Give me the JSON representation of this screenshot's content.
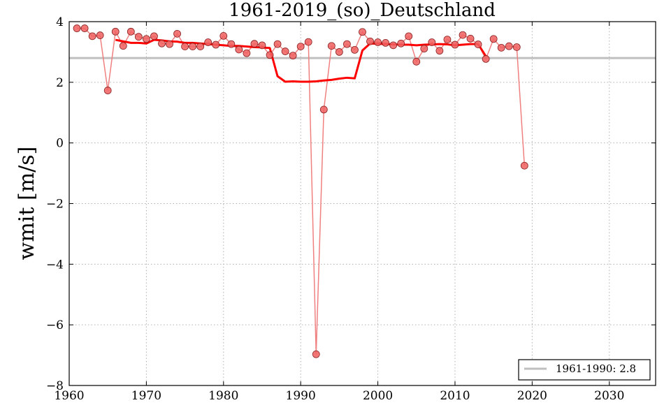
{
  "chart_data": {
    "type": "line",
    "title": "1961-2019_(so)_Deutschland",
    "xlabel": "",
    "ylabel": "wmit [m/s]",
    "xlim": [
      1960,
      2036
    ],
    "ylim": [
      -8,
      4
    ],
    "x_ticks": [
      1960,
      1970,
      1980,
      1990,
      2000,
      2010,
      2020,
      2030
    ],
    "y_ticks": [
      4,
      2,
      0,
      -2,
      -4,
      -6,
      -8
    ],
    "y_tick_labels": [
      "4",
      "2",
      "0",
      "−2",
      "−4",
      "−6",
      "−8"
    ],
    "grid": true,
    "legend_position": "bottom-right",
    "series": [
      {
        "style": "line-markers",
        "color": "#ff0000",
        "x": [
          1961,
          1962,
          1963,
          1964,
          1965,
          1966,
          1967,
          1968,
          1969,
          1970,
          1971,
          1972,
          1973,
          1974,
          1975,
          1976,
          1977,
          1978,
          1979,
          1980,
          1981,
          1982,
          1983,
          1984,
          1985,
          1986,
          1987,
          1988,
          1989,
          1990,
          1991,
          1992,
          1993,
          1994,
          1995,
          1996,
          1997,
          1998,
          1999,
          2000,
          2001,
          2002,
          2003,
          2004,
          2005,
          2006,
          2007,
          2008,
          2009,
          2010,
          2011,
          2012,
          2013,
          2014,
          2015,
          2016,
          2017,
          2018,
          2019
        ],
        "y": [
          3.78,
          3.78,
          3.52,
          3.55,
          1.73,
          3.67,
          3.2,
          3.67,
          3.5,
          3.43,
          3.52,
          3.28,
          3.26,
          3.6,
          3.18,
          3.18,
          3.18,
          3.32,
          3.24,
          3.53,
          3.26,
          3.08,
          2.96,
          3.27,
          3.22,
          2.9,
          3.26,
          3.02,
          2.88,
          3.18,
          3.33,
          -6.97,
          1.1,
          3.2,
          3.0,
          3.26,
          3.07,
          3.66,
          3.35,
          3.32,
          3.3,
          3.22,
          3.28,
          3.52,
          2.68,
          3.11,
          3.32,
          3.04,
          3.41,
          3.24,
          3.56,
          3.44,
          3.25,
          2.77,
          3.43,
          3.14,
          3.19,
          3.16,
          -0.75
        ]
      },
      {
        "style": "line",
        "color": "#ff0000",
        "x": [
          1966,
          1967,
          1968,
          1969,
          1970,
          1971,
          1972,
          1973,
          1974,
          1975,
          1976,
          1977,
          1978,
          1979,
          1980,
          1981,
          1982,
          1983,
          1984,
          1985,
          1986,
          1987,
          1988,
          1989,
          1990,
          1991,
          1992,
          1993,
          1994,
          1995,
          1996,
          1997,
          1998,
          1999,
          2000,
          2001,
          2002,
          2003,
          2004,
          2005,
          2006,
          2007,
          2008,
          2009,
          2010,
          2011,
          2012,
          2013,
          2014
        ],
        "y": [
          3.4,
          3.35,
          3.3,
          3.3,
          3.28,
          3.4,
          3.38,
          3.35,
          3.34,
          3.3,
          3.3,
          3.28,
          3.26,
          3.24,
          3.22,
          3.2,
          3.2,
          3.18,
          3.16,
          3.15,
          3.13,
          2.2,
          2.02,
          2.03,
          2.02,
          2.02,
          2.03,
          2.06,
          2.08,
          2.12,
          2.15,
          2.13,
          3.05,
          3.28,
          3.27,
          3.26,
          3.25,
          3.24,
          3.24,
          3.22,
          3.24,
          3.25,
          3.26,
          3.25,
          3.22,
          3.24,
          3.26,
          3.26,
          2.86
        ]
      }
    ],
    "reference_line": {
      "label": "1961-1990: 2.8",
      "value": 2.8,
      "color": "#bfbfbf"
    },
    "colors": {
      "marker_fill": "#f06060",
      "marker_edge": "#8a2020",
      "thin_line": "#f08080",
      "smooth_line": "#ff0000",
      "grid": "#b0b0b0"
    }
  }
}
